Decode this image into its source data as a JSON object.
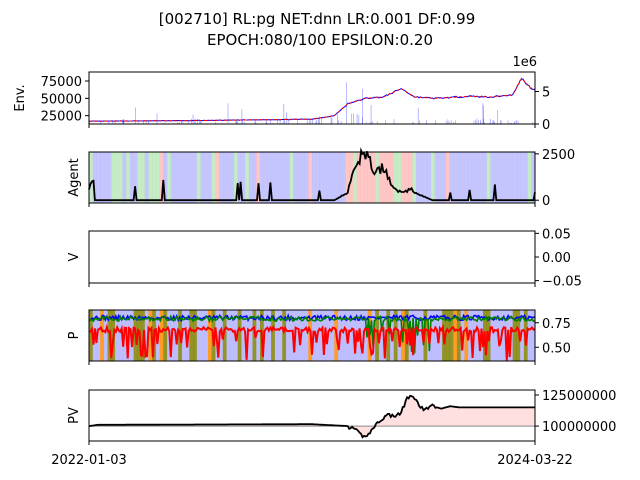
{
  "chart_data": {
    "type": "line",
    "title_line1": "[002710] RL:pg NET:dnn LR:0.001 DF:0.99",
    "title_line2": "EPOCH:080/100 EPSILON:0.20",
    "x_start_label": "2022-01-03",
    "x_end_label": "2024-03-22",
    "panels": [
      {
        "id": "env",
        "ylabel": "Env.",
        "left_ticks": [
          "25000",
          "50000",
          "75000"
        ],
        "left_tick_values": [
          25000,
          50000,
          75000
        ],
        "ylim_left": [
          13000,
          88000
        ],
        "right_ticks": [
          "0",
          "5"
        ],
        "right_tick_values": [
          0,
          5
        ],
        "right_offset_label": "1e6",
        "ylim_right": [
          0,
          8
        ],
        "price_anchors": [
          [
            0,
            17000
          ],
          [
            0.25,
            18000
          ],
          [
            0.5,
            20000
          ],
          [
            0.55,
            25000
          ],
          [
            0.58,
            42000
          ],
          [
            0.62,
            50000
          ],
          [
            0.66,
            52000
          ],
          [
            0.7,
            64000
          ],
          [
            0.73,
            52000
          ],
          [
            0.78,
            50000
          ],
          [
            0.85,
            53000
          ],
          [
            0.9,
            52000
          ],
          [
            0.95,
            55000
          ],
          [
            0.97,
            79000
          ],
          [
            0.99,
            65000
          ],
          [
            1.0,
            63000
          ]
        ]
      },
      {
        "id": "agent",
        "ylabel": "Agent",
        "right_ticks": [
          "0",
          "2500"
        ],
        "right_tick_values": [
          0,
          2500
        ],
        "ylim": [
          -150,
          2600
        ],
        "holdings_anchors": [
          [
            0,
            700
          ],
          [
            0.01,
            1000
          ],
          [
            0.012,
            0
          ],
          [
            0.55,
            0
          ],
          [
            0.58,
            400
          ],
          [
            0.6,
            2200
          ],
          [
            0.62,
            2500
          ],
          [
            0.64,
            1500
          ],
          [
            0.66,
            1800
          ],
          [
            0.68,
            800
          ],
          [
            0.7,
            400
          ],
          [
            0.72,
            600
          ],
          [
            0.75,
            200
          ],
          [
            0.77,
            0
          ],
          [
            1.0,
            0
          ]
        ]
      },
      {
        "id": "value",
        "ylabel": "V",
        "right_ticks": [
          "0.05",
          "0.00",
          "−0.05"
        ],
        "right_tick_values": [
          0.05,
          0.0,
          -0.05
        ],
        "ylim": [
          -0.055,
          0.055
        ]
      },
      {
        "id": "policy",
        "ylabel": "P",
        "right_ticks": [
          "0.75",
          "0.50"
        ],
        "right_tick_values": [
          0.75,
          0.5
        ],
        "ylim": [
          0.36,
          0.88
        ],
        "series": [
          {
            "color": "#0000ff",
            "base": 0.8
          },
          {
            "color": "#008000",
            "base": 0.79
          },
          {
            "color": "#ff0000",
            "base": 0.68
          }
        ]
      },
      {
        "id": "pv",
        "ylabel": "PV",
        "right_ticks": [
          "125000000",
          "100000000"
        ],
        "right_tick_values": [
          125000000,
          100000000
        ],
        "ylim": [
          88000000,
          129000000
        ],
        "baseline": 100000000,
        "pv_anchors": [
          [
            0,
            100000000
          ],
          [
            0.02,
            101000000
          ],
          [
            0.5,
            101500000
          ],
          [
            0.58,
            100000000
          ],
          [
            0.6,
            96000000
          ],
          [
            0.615,
            91000000
          ],
          [
            0.63,
            95000000
          ],
          [
            0.65,
            104000000
          ],
          [
            0.67,
            109000000
          ],
          [
            0.69,
            108000000
          ],
          [
            0.7,
            111000000
          ],
          [
            0.71,
            120000000
          ],
          [
            0.72,
            125000000
          ],
          [
            0.73,
            121000000
          ],
          [
            0.75,
            113000000
          ],
          [
            0.77,
            116000000
          ],
          [
            0.79,
            114000000
          ],
          [
            0.81,
            116000000
          ],
          [
            0.83,
            115000000
          ],
          [
            0.85,
            115000000
          ],
          [
            1.0,
            115000000
          ]
        ]
      }
    ],
    "colors": {
      "price": "#0000ff",
      "price_trend": "#ff0000",
      "volume": "#0000ff",
      "holdings": "#000000",
      "pv": "#000000",
      "pv_fill": "#ffcccc",
      "buy_band": "#ffb3b3",
      "sell_band": "#b3b3ff",
      "hold_band": "#b3e6b3",
      "explore_band": "#808000",
      "explore_band2": "#ff8c00"
    }
  }
}
